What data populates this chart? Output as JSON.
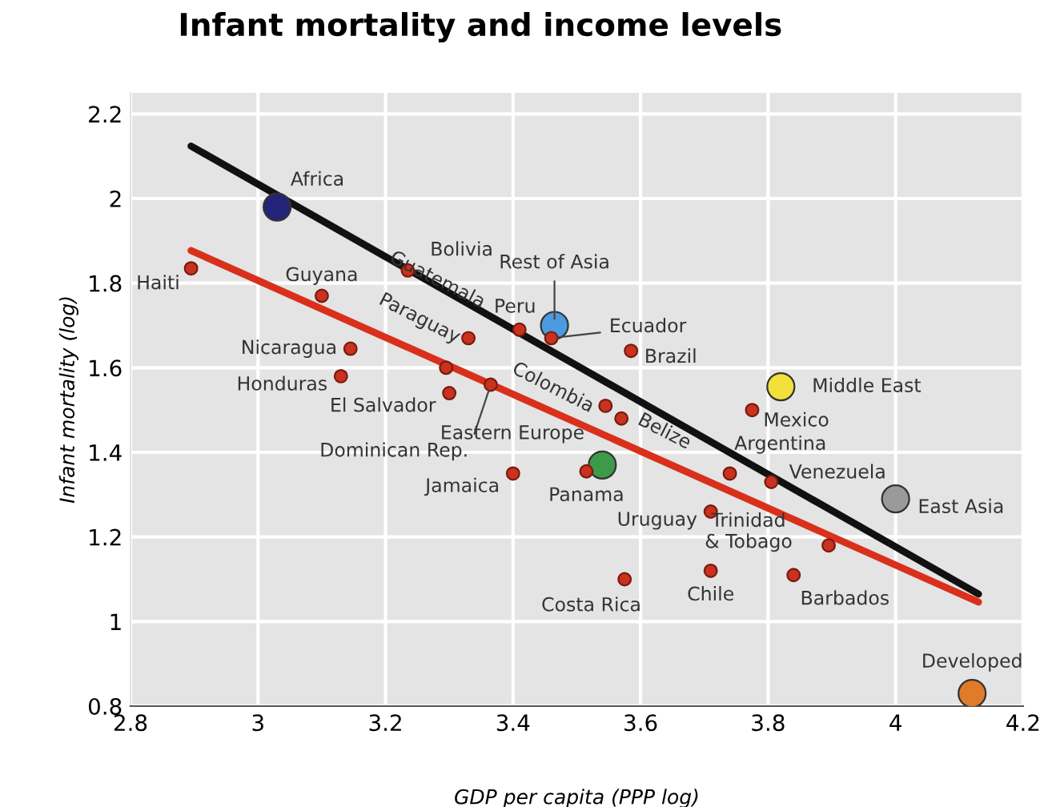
{
  "chart_data": {
    "type": "scatter",
    "title": "Infant mortality and income levels",
    "xlabel": "GDP per capita (PPP log)",
    "ylabel": "Infant mortality (log)",
    "xlim": [
      2.8,
      4.2
    ],
    "ylim": [
      0.8,
      2.25
    ],
    "xticks": [
      2.8,
      3,
      3.2,
      3.4,
      3.6,
      3.8,
      4,
      4.2
    ],
    "yticks": [
      0.8,
      1,
      1.2,
      1.4,
      1.6,
      1.8,
      2,
      2.2
    ],
    "grid": true,
    "series": [
      {
        "type": "line",
        "color": "#111111",
        "x": [
          2.895,
          4.13
        ],
        "values": [
          2.124,
          1.065
        ]
      },
      {
        "type": "line",
        "color": "#d9301c",
        "x": [
          2.895,
          4.13
        ],
        "values": [
          1.877,
          1.046
        ]
      },
      {
        "marker": "circle",
        "color": "#c8321e",
        "x": [
          2.895,
          3.1,
          3.235,
          3.33,
          3.145,
          3.13,
          3.295,
          3.3,
          3.365,
          3.41,
          3.46,
          3.585,
          3.545,
          3.57,
          3.4,
          3.515,
          3.71,
          3.74,
          3.805,
          3.775,
          3.895,
          3.71,
          3.84,
          3.575
        ],
        "values": [
          1.835,
          1.77,
          1.83,
          1.67,
          1.645,
          1.58,
          1.6,
          1.54,
          1.56,
          1.69,
          1.67,
          1.64,
          1.51,
          1.48,
          1.35,
          1.355,
          1.26,
          1.35,
          1.33,
          1.5,
          1.18,
          1.12,
          1.11,
          1.1
        ]
      },
      {
        "marker": "circle",
        "colors": [
          "#23237a",
          "#4a9be0",
          "#3d9a48",
          "#f2e13a",
          "#9a9a9a",
          "#e07b2a"
        ],
        "x": [
          3.03,
          3.465,
          3.54,
          3.82,
          4.0,
          4.12
        ],
        "values": [
          1.98,
          1.7,
          1.37,
          1.555,
          1.29,
          0.83
        ]
      }
    ],
    "annotations": [
      {
        "text": "Haiti",
        "x": 2.895,
        "y": 1.835
      },
      {
        "text": "Guyana",
        "x": 3.1,
        "y": 1.77
      },
      {
        "text": "Bolivia",
        "x": 3.235,
        "y": 1.83
      },
      {
        "text": "Guatemala",
        "x": 3.33,
        "y": 1.67
      },
      {
        "text": "Nicaragua",
        "x": 3.145,
        "y": 1.645
      },
      {
        "text": "Honduras",
        "x": 3.13,
        "y": 1.58
      },
      {
        "text": "Paraguay",
        "x": 3.295,
        "y": 1.6
      },
      {
        "text": "El Salvador",
        "x": 3.3,
        "y": 1.54
      },
      {
        "text": "Dominican Rep.",
        "x": 3.365,
        "y": 1.56
      },
      {
        "text": "Peru",
        "x": 3.41,
        "y": 1.69
      },
      {
        "text": "Ecuador",
        "x": 3.46,
        "y": 1.67
      },
      {
        "text": "Brazil",
        "x": 3.585,
        "y": 1.64
      },
      {
        "text": "Colombia",
        "x": 3.545,
        "y": 1.51
      },
      {
        "text": "Belize",
        "x": 3.57,
        "y": 1.48
      },
      {
        "text": "Jamaica",
        "x": 3.4,
        "y": 1.35
      },
      {
        "text": "Panama",
        "x": 3.515,
        "y": 1.355
      },
      {
        "text": "Uruguay",
        "x": 3.71,
        "y": 1.26
      },
      {
        "text": "Argentina",
        "x": 3.74,
        "y": 1.35
      },
      {
        "text": "Venezuela",
        "x": 3.805,
        "y": 1.33
      },
      {
        "text": "Mexico",
        "x": 3.775,
        "y": 1.5
      },
      {
        "text": "Trinidad\n& Tobago",
        "x": 3.895,
        "y": 1.18
      },
      {
        "text": "Chile",
        "x": 3.71,
        "y": 1.12
      },
      {
        "text": "Barbados",
        "x": 3.84,
        "y": 1.11
      },
      {
        "text": "Costa Rica",
        "x": 3.575,
        "y": 1.1
      },
      {
        "text": "Africa",
        "x": 3.03,
        "y": 1.98
      },
      {
        "text": "Rest of Asia",
        "x": 3.465,
        "y": 1.7
      },
      {
        "text": "Eastern Europe",
        "x": 3.54,
        "y": 1.37
      },
      {
        "text": "Middle East",
        "x": 3.82,
        "y": 1.555
      },
      {
        "text": "East Asia",
        "x": 4.0,
        "y": 1.29
      },
      {
        "text": "Developed",
        "x": 4.12,
        "y": 0.83
      }
    ]
  }
}
